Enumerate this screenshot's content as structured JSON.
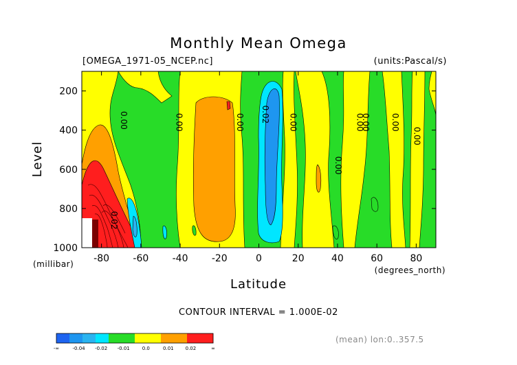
{
  "chart_data": {
    "type": "contour",
    "title": "Monthly Mean Omega",
    "subtitle_left": "[OMEGA_1971-05_NCEP.nc]",
    "subtitle_right": "(units:Pascal/s)",
    "xlabel": "Latitude",
    "xunits": "(degrees_north)",
    "ylabel": "Level",
    "yunits": "(millibar)",
    "xlim": [
      -90,
      90
    ],
    "ylim": [
      1000,
      100
    ],
    "x_ticks": [
      "-80",
      "-60",
      "-40",
      "-20",
      "0",
      "20",
      "40",
      "60",
      "80"
    ],
    "x_tick_values": [
      -80,
      -60,
      -40,
      -20,
      0,
      20,
      40,
      60,
      80
    ],
    "y_ticks": [
      "200",
      "400",
      "600",
      "800",
      "1000"
    ],
    "y_tick_values": [
      200,
      400,
      600,
      800,
      1000
    ],
    "contour_interval": "CONTOUR INTERVAL = 1.000E-02",
    "footer": "(mean) lon:0..357.5",
    "colorbar": {
      "colors": [
        "#1e64f0",
        "#1e96f0",
        "#2ab4f0",
        "#00e6ff",
        "#28dc28",
        "#28dc28",
        "#ffff00",
        "#ffff00",
        "#ffa000",
        "#ffa000",
        "#ff1e1e",
        "#ff1e1e"
      ],
      "labels": [
        "-∞",
        "-0.04",
        "-0.02",
        "-0.01",
        "0.0",
        "0.01",
        "0.02",
        "∞"
      ]
    },
    "contour_labels": [
      {
        "text": "0.00",
        "lat": -70,
        "lev": 350
      },
      {
        "text": "0.00",
        "lat": -42,
        "lev": 360
      },
      {
        "text": "0.00",
        "lat": -11,
        "lev": 360
      },
      {
        "text": "0.02",
        "lat": 2,
        "lev": 320
      },
      {
        "text": "0.00",
        "lat": 16,
        "lev": 360
      },
      {
        "text": "0.00",
        "lat": 39,
        "lev": 580
      },
      {
        "text": "0.00",
        "lat": 50,
        "lev": 360
      },
      {
        "text": "0.00",
        "lat": 53,
        "lev": 360
      },
      {
        "text": "0.00",
        "lat": 68,
        "lev": 360
      },
      {
        "text": "0.00",
        "lat": 79,
        "lev": 430
      },
      {
        "text": "0.02",
        "lat": -75,
        "lev": 860
      }
    ]
  }
}
